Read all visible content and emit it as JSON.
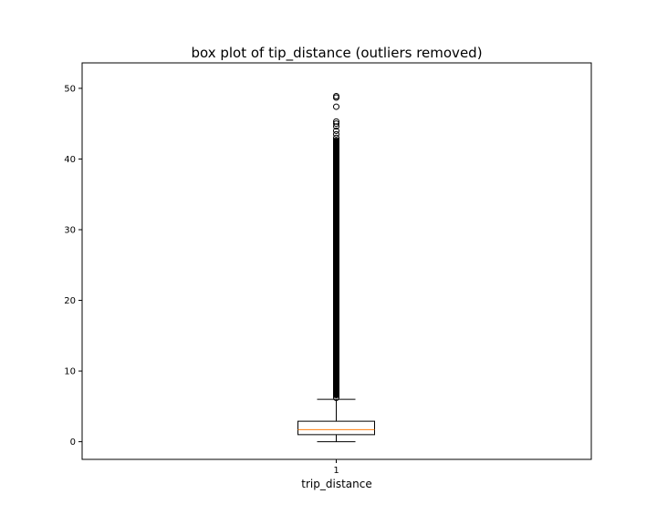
{
  "chart_data": {
    "type": "box",
    "title": "box plot of tip_distance (outliers removed)",
    "xlabel": "trip_distance",
    "ylabel": "",
    "categories": [
      "1"
    ],
    "ylim": [
      -2.5,
      53.6
    ],
    "yticks": [
      0,
      10,
      20,
      30,
      40,
      50
    ],
    "grid": false,
    "series": [
      {
        "whisker_low": 0.0,
        "q1": 1.0,
        "median": 1.7,
        "q3": 2.9,
        "whisker_high": 6.0,
        "fliers": [
          6.2,
          6.6,
          7.0,
          7.5,
          8.0,
          8.5,
          9.0,
          9.5,
          10.0,
          11.0,
          12.0,
          13.0,
          14.0,
          15.0,
          16.0,
          17.0,
          18.0,
          19.0,
          20.0,
          21.0,
          22.0,
          23.0,
          24.0,
          25.0,
          26.0,
          27.0,
          28.0,
          29.0,
          30.0,
          31.0,
          32.0,
          33.0,
          34.0,
          35.0,
          36.0,
          37.0,
          38.0,
          39.0,
          39.6,
          40.2,
          40.7,
          41.3,
          41.9,
          42.3,
          43.0,
          43.5,
          44.0,
          44.6,
          45.0,
          45.3,
          47.4,
          48.7,
          48.9
        ],
        "color_box": "#000000",
        "color_median": "#ff7f0e"
      }
    ]
  }
}
